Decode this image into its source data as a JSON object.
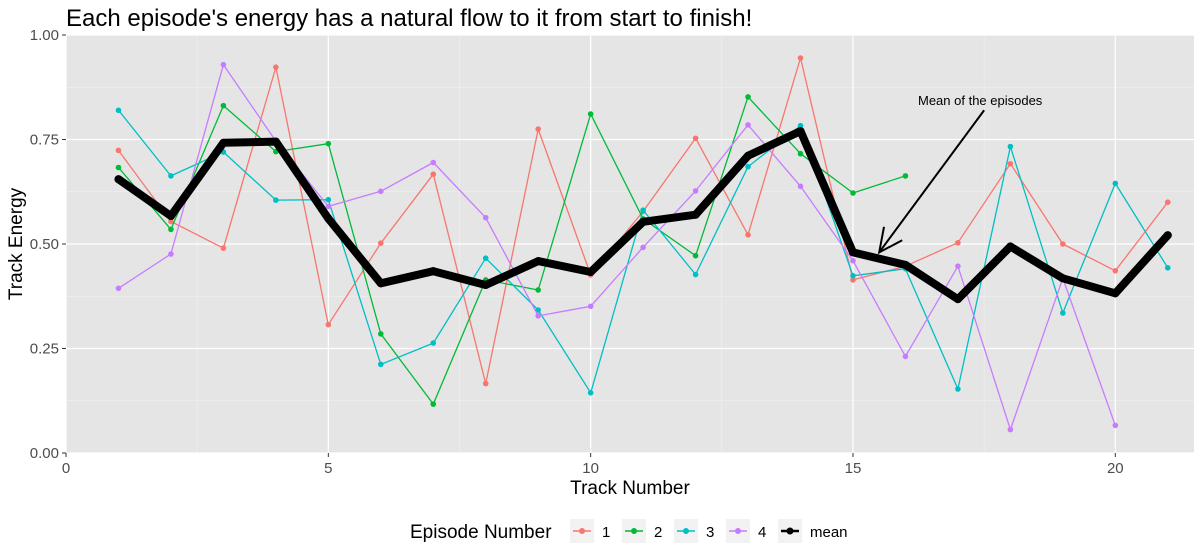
{
  "chart_data": {
    "type": "line",
    "title": "Each episode's energy has a natural flow to it from start to finish!",
    "xlabel": "Track Number",
    "ylabel": "Track Energy",
    "xlim": [
      0,
      21.5
    ],
    "ylim": [
      0,
      1
    ],
    "x_ticks": [
      0,
      5,
      10,
      15,
      20
    ],
    "x_tick_labels": [
      "0",
      "5",
      "10",
      "15",
      "20"
    ],
    "y_ticks": [
      0,
      0.25,
      0.5,
      0.75,
      1.0
    ],
    "y_tick_labels": [
      "0.00",
      "0.25",
      "0.50",
      "0.75",
      "1.00"
    ],
    "grid": true,
    "panel_background": "#e5e5e5",
    "legend": {
      "title": "Episode Number",
      "position": "bottom",
      "entries": [
        "1",
        "2",
        "3",
        "4",
        "mean"
      ]
    },
    "annotation": {
      "text": "Mean of the episodes",
      "arrow_from": [
        17.5,
        0.82
      ],
      "arrow_to": [
        15.5,
        0.48
      ]
    },
    "series": [
      {
        "name": "1",
        "color": "#F8766D",
        "x": [
          1,
          2,
          3,
          4,
          5,
          6,
          7,
          8,
          9,
          10,
          11,
          12,
          13,
          14,
          15,
          16,
          17,
          18,
          19,
          20,
          21
        ],
        "values": [
          0.724,
          0.554,
          0.49,
          0.923,
          0.307,
          0.502,
          0.667,
          0.166,
          0.775,
          0.426,
          0.578,
          0.753,
          0.522,
          0.945,
          0.414,
          0.447,
          0.503,
          0.692,
          0.5,
          0.436,
          0.6
        ]
      },
      {
        "name": "2",
        "color": "#00BA38",
        "x": [
          1,
          2,
          3,
          4,
          5,
          6,
          7,
          8,
          9,
          10,
          11,
          12,
          13,
          14,
          15,
          16
        ],
        "values": [
          0.683,
          0.535,
          0.831,
          0.721,
          0.74,
          0.285,
          0.117,
          0.414,
          0.39,
          0.811,
          0.56,
          0.472,
          0.852,
          0.716,
          0.622,
          0.663
        ]
      },
      {
        "name": "3",
        "color": "#00BFC4",
        "x": [
          1,
          2,
          3,
          4,
          5,
          6,
          7,
          8,
          9,
          10,
          11,
          12,
          13,
          14,
          15,
          16,
          17,
          18,
          19,
          20,
          21
        ],
        "values": [
          0.82,
          0.663,
          0.72,
          0.605,
          0.606,
          0.212,
          0.263,
          0.466,
          0.342,
          0.144,
          0.581,
          0.427,
          0.685,
          0.783,
          0.424,
          0.441,
          0.153,
          0.733,
          0.335,
          0.645,
          0.443
        ]
      },
      {
        "name": "4",
        "color": "#C77CFF",
        "x": [
          1,
          2,
          3,
          4,
          5,
          6,
          7,
          8,
          9,
          10,
          11,
          12,
          13,
          14,
          15,
          16,
          17,
          18,
          19,
          20
        ],
        "values": [
          0.394,
          0.476,
          0.929,
          0.746,
          0.59,
          0.626,
          0.695,
          0.563,
          0.328,
          0.351,
          0.492,
          0.627,
          0.785,
          0.638,
          0.46,
          0.231,
          0.447,
          0.056,
          0.418,
          0.066
        ]
      },
      {
        "name": "mean",
        "color": "#000000",
        "x": [
          1,
          2,
          3,
          4,
          5,
          6,
          7,
          8,
          9,
          10,
          11,
          12,
          13,
          14,
          15,
          16,
          17,
          18,
          19,
          20,
          21
        ],
        "values": [
          0.655,
          0.567,
          0.742,
          0.745,
          0.561,
          0.406,
          0.435,
          0.402,
          0.459,
          0.433,
          0.553,
          0.57,
          0.711,
          0.77,
          0.48,
          0.45,
          0.368,
          0.494,
          0.418,
          0.382,
          0.521
        ]
      }
    ]
  }
}
